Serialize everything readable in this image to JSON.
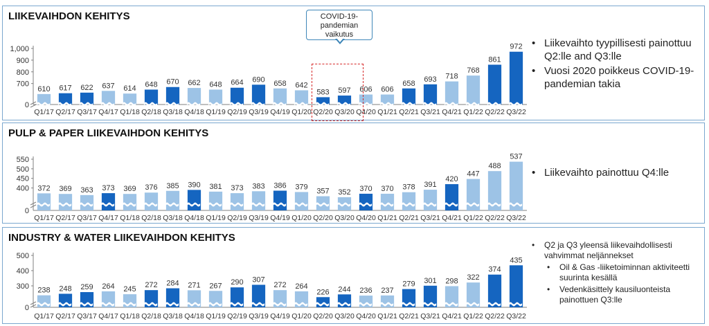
{
  "colors": {
    "light": "#9dc3e6",
    "dark": "#1565c0",
    "axis": "#7f7f7f"
  },
  "callout": {
    "line1": "COVID-19-",
    "line2": "pandemian",
    "line3": "vaikutus"
  },
  "panels": [
    {
      "title": "LIIKEVAIHDON KEHITYS",
      "bullets": [
        {
          "text": "Liikevaihto tyypillisesti painottuu Q2:lle and Q3:lle",
          "level": 1
        },
        {
          "text": "Vuosi 2020 poikkeus COVID-19-pandemian takia",
          "level": 1
        }
      ]
    },
    {
      "title": "PULP & PAPER LIIKEVAIHDON KEHITYS",
      "bullets": [
        {
          "text": "Liikevaihto painottuu Q4:lle",
          "level": 1
        }
      ]
    },
    {
      "title": "INDUSTRY & WATER LIIKEVAIHDON KEHITYS",
      "bullets": [
        {
          "text": "Q2 ja Q3 yleensä liikevaihdollisesti vahvimmat neljännekset",
          "level": 1
        },
        {
          "text": "Oil & Gas -liiketoiminnan aktiviteetti suurinta kesällä",
          "level": 2
        },
        {
          "text": "Vedenkäsittely kausiluonteista painottuen Q3:lle",
          "level": 2
        }
      ]
    }
  ],
  "chart_data": [
    {
      "type": "bar",
      "title": "LIIKEVAIHDON KEHITYS",
      "categories": [
        "Q1/17",
        "Q2/17",
        "Q3/17",
        "Q4/17",
        "Q1/18",
        "Q2/18",
        "Q3/18",
        "Q4/18",
        "Q1/19",
        "Q2/19",
        "Q3/19",
        "Q4/19",
        "Q1/20",
        "Q2/20",
        "Q3/20",
        "Q4/20",
        "Q1/21",
        "Q2/21",
        "Q3/21",
        "Q4/21",
        "Q1/22",
        "Q2/22",
        "Q3/22"
      ],
      "values": [
        610,
        617,
        622,
        637,
        614,
        648,
        670,
        662,
        648,
        664,
        690,
        658,
        642,
        583,
        597,
        606,
        606,
        658,
        693,
        718,
        768,
        861,
        972
      ],
      "value_labels": [
        "610",
        "617",
        "622",
        "637",
        "614",
        "648",
        "670",
        "662",
        "648",
        "664",
        "690",
        "658",
        "642",
        "583",
        "597",
        "606",
        "606",
        "658",
        "693",
        "718",
        "768",
        "861",
        "972"
      ],
      "shades": [
        "light",
        "dark",
        "dark",
        "light",
        "light",
        "dark",
        "dark",
        "light",
        "light",
        "dark",
        "dark",
        "light",
        "light",
        "dark",
        "dark",
        "light",
        "light",
        "dark",
        "dark",
        "light",
        "light",
        "dark",
        "dark"
      ],
      "ytick_labels": [
        "1,000",
        "900",
        "800",
        "700",
        "0"
      ],
      "yticks": [
        1000,
        900,
        800,
        700
      ],
      "ylim": [
        550,
        1000
      ],
      "axis_break": true
    },
    {
      "type": "bar",
      "title": "PULP & PAPER LIIKEVAIHDON KEHITYS",
      "categories": [
        "Q1/17",
        "Q2/17",
        "Q3/17",
        "Q4/17",
        "Q1/18",
        "Q2/18",
        "Q3/18",
        "Q4/18",
        "Q1/19",
        "Q2/19",
        "Q3/19",
        "Q4/19",
        "Q1/20",
        "Q2/20",
        "Q3/20",
        "Q4/20",
        "Q1/21",
        "Q2/21",
        "Q3/21",
        "Q4/21",
        "Q1/22",
        "Q2/22",
        "Q3/22"
      ],
      "values": [
        372,
        369,
        363,
        373,
        369,
        376,
        385,
        390,
        381,
        373,
        383,
        386,
        379,
        357,
        352,
        370,
        370,
        378,
        391,
        420,
        447,
        488,
        537
      ],
      "value_labels": [
        "372",
        "369",
        "363",
        "373",
        "369",
        "376",
        "385",
        "390",
        "381",
        "373",
        "383",
        "386",
        "379",
        "357",
        "352",
        "370",
        "370",
        "378",
        "391",
        "420",
        "447",
        "488",
        "537"
      ],
      "shades": [
        "light",
        "light",
        "light",
        "dark",
        "light",
        "light",
        "light",
        "dark",
        "light",
        "light",
        "light",
        "dark",
        "light",
        "light",
        "light",
        "dark",
        "light",
        "light",
        "light",
        "dark",
        "light",
        "light",
        "light"
      ],
      "ytick_labels": [
        "550",
        "500",
        "450",
        "400",
        "0"
      ],
      "yticks": [
        550,
        500,
        450,
        400
      ],
      "ylim": [
        330,
        550
      ],
      "axis_break": true
    },
    {
      "type": "bar",
      "title": "INDUSTRY & WATER LIIKEVAIHDON KEHITYS",
      "categories": [
        "Q1/17",
        "Q2/17",
        "Q3/17",
        "Q4/17",
        "Q1/18",
        "Q2/18",
        "Q3/18",
        "Q4/18",
        "Q1/19",
        "Q2/19",
        "Q3/19",
        "Q4/19",
        "Q1/20",
        "Q2/20",
        "Q3/20",
        "Q4/20",
        "Q1/21",
        "Q2/21",
        "Q3/21",
        "Q4/21",
        "Q1/22",
        "Q2/22",
        "Q3/22"
      ],
      "values": [
        238,
        248,
        259,
        264,
        245,
        272,
        284,
        271,
        267,
        290,
        307,
        272,
        264,
        226,
        244,
        236,
        237,
        279,
        301,
        298,
        322,
        374,
        435
      ],
      "value_labels": [
        "238",
        "248",
        "259",
        "264",
        "245",
        "272",
        "284",
        "271",
        "267",
        "290",
        "307",
        "272",
        "264",
        "226",
        "244",
        "236",
        "237",
        "279",
        "301",
        "298",
        "322",
        "374",
        "435"
      ],
      "shades": [
        "light",
        "dark",
        "dark",
        "light",
        "light",
        "dark",
        "dark",
        "light",
        "light",
        "dark",
        "dark",
        "light",
        "light",
        "dark",
        "dark",
        "light",
        "light",
        "dark",
        "dark",
        "light",
        "light",
        "dark",
        "dark"
      ],
      "ytick_labels": [
        "500",
        "400",
        "300",
        "0"
      ],
      "yticks": [
        500,
        400,
        300
      ],
      "ylim": [
        200,
        500
      ],
      "axis_break": true
    }
  ]
}
